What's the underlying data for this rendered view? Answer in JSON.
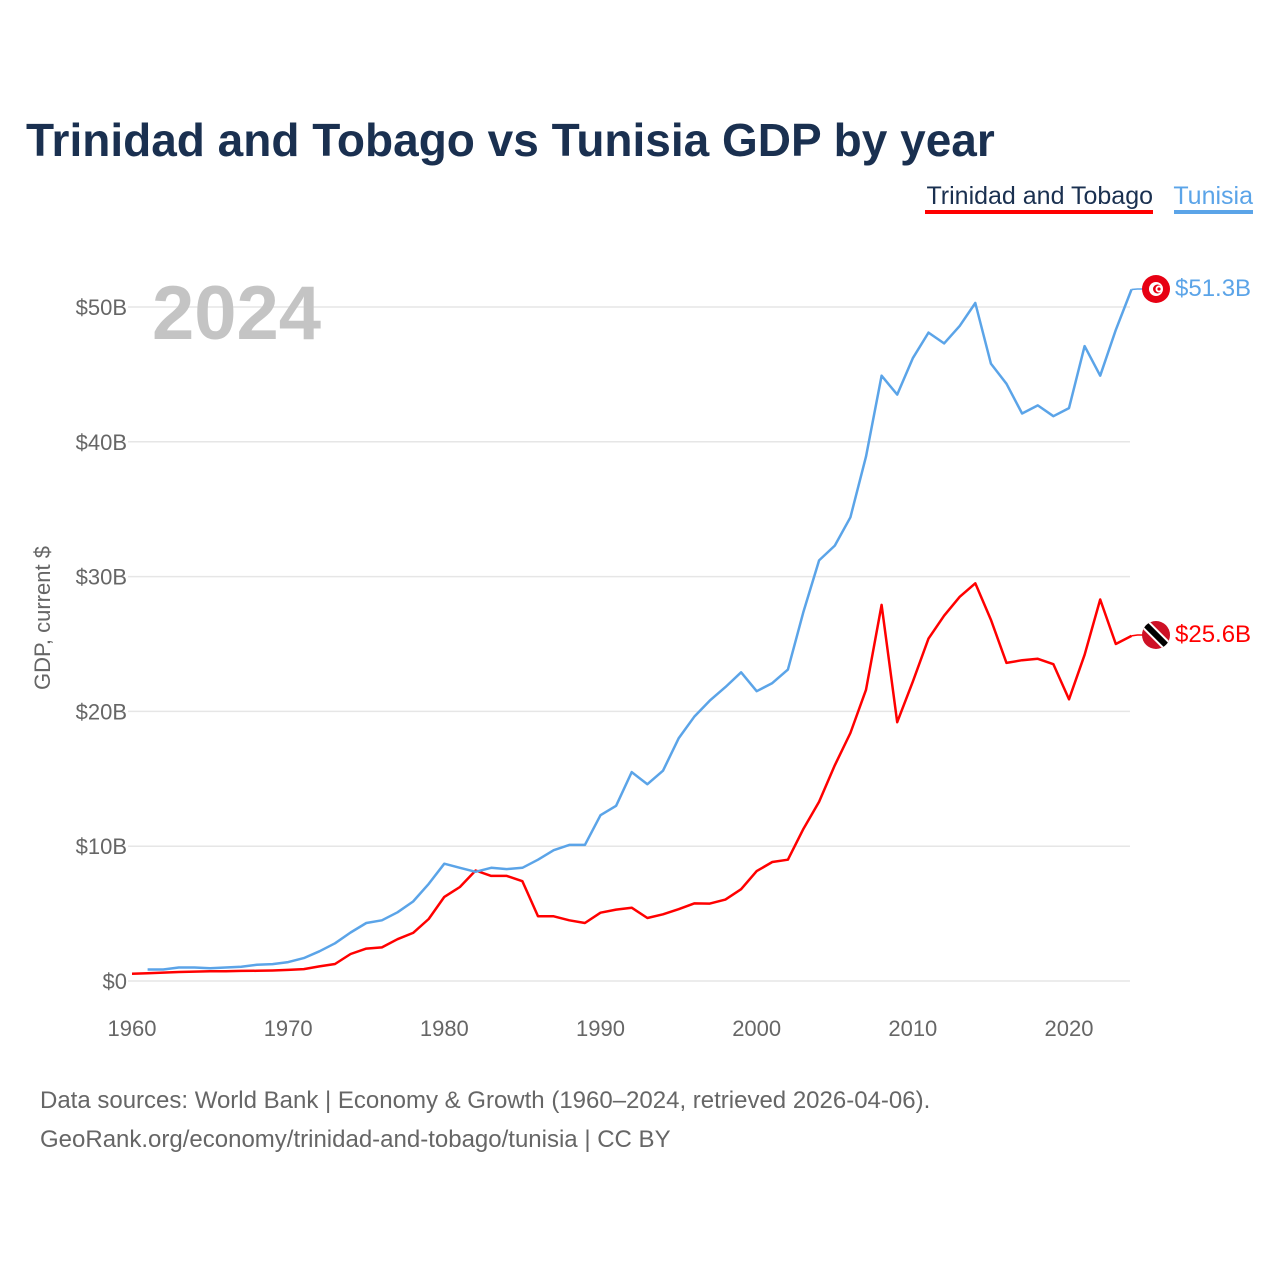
{
  "chart_data": {
    "type": "line",
    "title": "Trinidad and Tobago vs Tunisia GDP by year",
    "ylabel": "GDP, current $",
    "xlabel": "",
    "year_label": "2024",
    "xlim": [
      1960,
      2024
    ],
    "ylim": [
      0,
      50
    ],
    "x_ticks": [
      1960,
      1970,
      1980,
      1990,
      2000,
      2010,
      2020
    ],
    "x_tick_labels": [
      "1960",
      "1970",
      "1980",
      "1990",
      "2000",
      "2010",
      "2020"
    ],
    "y_ticks": [
      0,
      10,
      20,
      30,
      40,
      50
    ],
    "y_tick_labels": [
      "$0",
      "$10B",
      "$20B",
      "$30B",
      "$40B",
      "$50B"
    ],
    "grid": true,
    "legend_position": "top-right",
    "series": [
      {
        "name": "Trinidad and Tobago",
        "color": "#ff0000",
        "start_year": 1960,
        "end_label": "$25.6B",
        "flag": "trinidad-and-tobago-flag",
        "values": [
          0.54,
          0.58,
          0.62,
          0.67,
          0.7,
          0.72,
          0.72,
          0.75,
          0.76,
          0.78,
          0.82,
          0.88,
          1.08,
          1.26,
          2.0,
          2.4,
          2.49,
          3.1,
          3.57,
          4.6,
          6.24,
          6.97,
          8.2,
          7.8,
          7.8,
          7.4,
          4.8,
          4.8,
          4.5,
          4.3,
          5.07,
          5.3,
          5.44,
          4.67,
          4.95,
          5.33,
          5.76,
          5.74,
          6.04,
          6.81,
          8.15,
          8.83,
          9.0,
          11.3,
          13.3,
          16.0,
          18.4,
          21.6,
          27.9,
          19.2,
          22.2,
          25.4,
          27.1,
          28.5,
          29.5,
          26.8,
          23.6,
          23.8,
          23.9,
          23.5,
          20.9,
          24.2,
          28.3,
          25.0,
          25.6
        ]
      },
      {
        "name": "Tunisia",
        "color": "#5ba4e8",
        "start_year": 1961,
        "end_label": "$51.3B",
        "flag": "tunisia-flag",
        "values": [
          0.85,
          0.85,
          1.0,
          1.0,
          0.95,
          1.0,
          1.05,
          1.2,
          1.25,
          1.4,
          1.7,
          2.2,
          2.8,
          3.6,
          4.3,
          4.5,
          5.1,
          5.9,
          7.2,
          8.7,
          8.4,
          8.1,
          8.4,
          8.3,
          8.4,
          9.0,
          9.7,
          10.1,
          10.1,
          12.3,
          13.0,
          15.5,
          14.6,
          15.6,
          18.0,
          19.6,
          20.8,
          21.8,
          22.9,
          21.5,
          22.1,
          23.1,
          27.4,
          31.2,
          32.3,
          34.4,
          38.9,
          44.9,
          43.5,
          46.2,
          48.1,
          47.3,
          48.6,
          50.3,
          45.8,
          44.3,
          42.1,
          42.7,
          41.9,
          42.5,
          47.1,
          44.9,
          48.3,
          51.3
        ]
      }
    ]
  },
  "footer": {
    "line1": "Data sources: World Bank | Economy & Growth (1960–2024, retrieved 2026-04-06).",
    "line2": "GeoRank.org/economy/trinidad-and-tobago/tunisia | CC BY"
  }
}
